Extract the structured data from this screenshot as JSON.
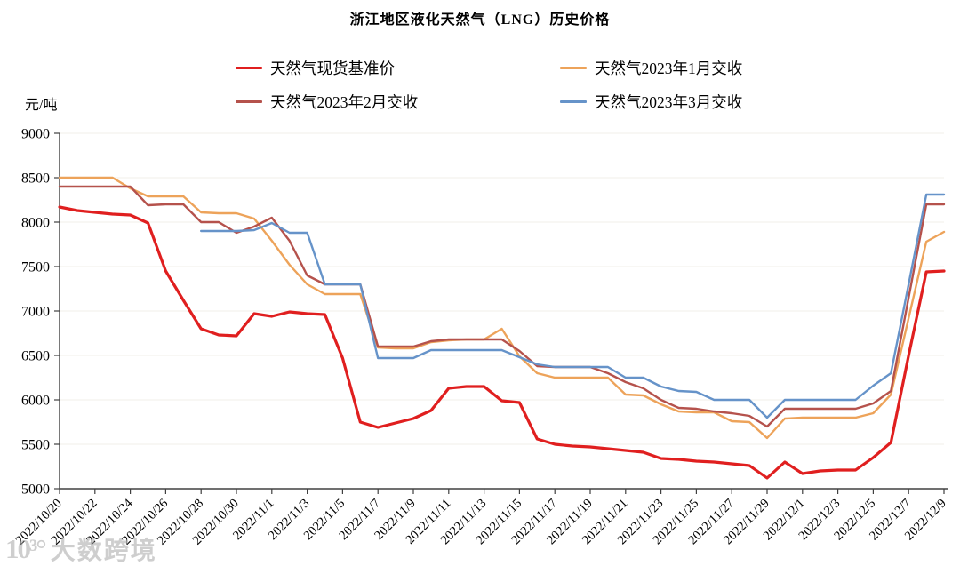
{
  "title": "浙江地区液化天然气（LNG）历史价格",
  "y_axis_unit": "元/吨",
  "watermark": {
    "logo_text": "10³°",
    "text": "大数跨境"
  },
  "colors": {
    "spot": "#e01f1f",
    "jan": "#eda35a",
    "feb": "#b5524c",
    "mar": "#6693c9",
    "gridline": "#f2efe8",
    "axis": "#404040"
  },
  "chart_data": {
    "type": "line",
    "title": "浙江地区液化天然气（LNG）历史价格",
    "ylabel": "元/吨",
    "ylim": [
      5000,
      9000
    ],
    "y_ticks": [
      9000,
      8500,
      8000,
      7500,
      7000,
      6500,
      6000,
      5500,
      5000
    ],
    "grid": "horizontal",
    "legend_position": "top",
    "x_label_every": 2,
    "x": [
      "2022/10/20",
      "2022/10/21",
      "2022/10/22",
      "2022/10/23",
      "2022/10/24",
      "2022/10/25",
      "2022/10/26",
      "2022/10/27",
      "2022/10/28",
      "2022/10/29",
      "2022/10/30",
      "2022/10/31",
      "2022/11/1",
      "2022/11/2",
      "2022/11/3",
      "2022/11/4",
      "2022/11/5",
      "2022/11/6",
      "2022/11/7",
      "2022/11/8",
      "2022/11/9",
      "2022/11/10",
      "2022/11/11",
      "2022/11/12",
      "2022/11/13",
      "2022/11/14",
      "2022/11/15",
      "2022/11/16",
      "2022/11/17",
      "2022/11/18",
      "2022/11/19",
      "2022/11/20",
      "2022/11/21",
      "2022/11/22",
      "2022/11/23",
      "2022/11/24",
      "2022/11/25",
      "2022/11/26",
      "2022/11/27",
      "2022/11/28",
      "2022/11/29",
      "2022/11/30",
      "2022/12/1",
      "2022/12/2",
      "2022/12/3",
      "2022/12/4",
      "2022/12/5",
      "2022/12/6",
      "2022/12/7",
      "2022/12/8",
      "2022/12/9"
    ],
    "x_tick_labels": [
      "2022/10/20",
      "2022/10/22",
      "2022/10/24",
      "2022/10/26",
      "2022/10/28",
      "2022/10/30",
      "2022/11/1",
      "2022/11/3",
      "2022/11/5",
      "2022/11/7",
      "2022/11/9",
      "2022/11/11",
      "2022/11/13",
      "2022/11/15",
      "2022/11/17",
      "2022/11/19",
      "2022/11/21",
      "2022/11/23",
      "2022/11/25",
      "2022/11/27",
      "2022/11/29",
      "2022/12/1",
      "2022/12/3",
      "2022/12/5",
      "2022/12/7",
      "2022/12/9"
    ],
    "series": [
      {
        "name": "天然气现货基准价",
        "color": "#e01f1f",
        "values": [
          8170,
          8130,
          8110,
          8090,
          8080,
          7990,
          7450,
          7120,
          6800,
          6730,
          6720,
          6970,
          6940,
          6990,
          6970,
          6960,
          6470,
          5750,
          5690,
          5740,
          5790,
          5880,
          6130,
          6150,
          6150,
          5990,
          5970,
          5560,
          5500,
          5480,
          5470,
          5450,
          5430,
          5410,
          5340,
          5330,
          5310,
          5300,
          5280,
          5260,
          5120,
          5300,
          5170,
          5200,
          5210,
          5210,
          5350,
          5520,
          6500,
          7440,
          7450
        ]
      },
      {
        "name": "天然气2023年1月交收",
        "color": "#eda35a",
        "values": [
          8500,
          8500,
          8500,
          8500,
          8380,
          8290,
          8290,
          8290,
          8110,
          8100,
          8100,
          8040,
          7790,
          7520,
          7300,
          7190,
          7190,
          7190,
          6590,
          6580,
          6580,
          6650,
          6670,
          6680,
          6680,
          6800,
          6490,
          6300,
          6250,
          6250,
          6250,
          6250,
          6060,
          6050,
          5950,
          5870,
          5860,
          5860,
          5760,
          5750,
          5570,
          5790,
          5800,
          5800,
          5800,
          5800,
          5850,
          6060,
          6920,
          7780,
          7890
        ]
      },
      {
        "name": "天然气2023年2月交收",
        "color": "#b5524c",
        "values": [
          8400,
          8400,
          8400,
          8400,
          8400,
          8190,
          8200,
          8200,
          8000,
          8000,
          7880,
          7950,
          8050,
          7790,
          7400,
          7300,
          7300,
          7300,
          6600,
          6600,
          6600,
          6660,
          6680,
          6680,
          6680,
          6680,
          6550,
          6380,
          6370,
          6370,
          6370,
          6300,
          6200,
          6130,
          6000,
          5910,
          5900,
          5870,
          5850,
          5820,
          5700,
          5900,
          5900,
          5900,
          5900,
          5900,
          5960,
          6100,
          7150,
          8200,
          8200
        ]
      },
      {
        "name": "天然气2023年3月交收",
        "color": "#6693c9",
        "values": [
          null,
          null,
          null,
          null,
          null,
          null,
          null,
          null,
          7900,
          7900,
          7900,
          7910,
          7990,
          7880,
          7880,
          7300,
          7300,
          7300,
          6470,
          6470,
          6470,
          6560,
          6560,
          6560,
          6560,
          6560,
          6480,
          6400,
          6370,
          6370,
          6370,
          6370,
          6250,
          6250,
          6150,
          6100,
          6090,
          6000,
          6000,
          6000,
          5800,
          6000,
          6000,
          6000,
          6000,
          6000,
          6160,
          6300,
          7300,
          8310,
          8310
        ]
      }
    ]
  }
}
